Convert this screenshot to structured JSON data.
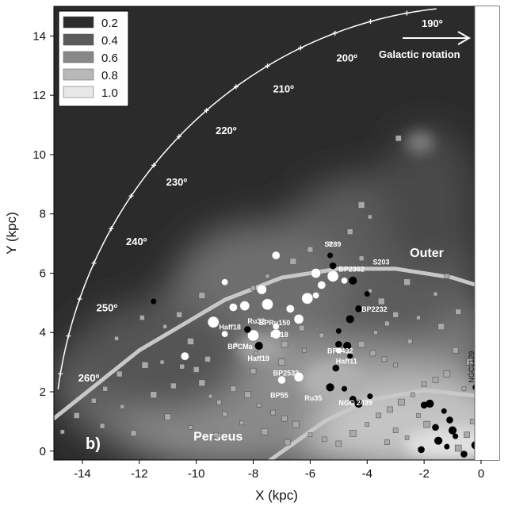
{
  "chart_data": {
    "type": "scatter",
    "xlabel": "X (kpc)",
    "ylabel": "Y (kpc)",
    "xlim": [
      -15,
      0
    ],
    "ylim": [
      -0.3,
      15
    ],
    "x_ticks": [
      "-14",
      "-12",
      "-10",
      "-8",
      "-6",
      "-4",
      "-2",
      "0"
    ],
    "y_ticks": [
      "0",
      "2",
      "4",
      "6",
      "8",
      "10",
      "12",
      "14"
    ],
    "legend": {
      "position": "top-left",
      "levels": [
        {
          "label": "0.2",
          "color": "#2c2c2c"
        },
        {
          "label": "0.4",
          "color": "#5b5b5b"
        },
        {
          "label": "0.6",
          "color": "#888888"
        },
        {
          "label": "0.8",
          "color": "#b8b8b8"
        },
        {
          "label": "1.0",
          "color": "#e8e8e8"
        }
      ]
    },
    "panel_label": "b)",
    "arms": [
      {
        "name": "Outer",
        "points": [
          [
            -15,
            1.1
          ],
          [
            -12,
            3.4
          ],
          [
            -9,
            5.1
          ],
          [
            -7,
            5.85
          ],
          [
            -5,
            6.15
          ],
          [
            -3,
            6.15
          ],
          [
            -1,
            5.85
          ],
          [
            0,
            5.55
          ]
        ]
      },
      {
        "name": "Perseus",
        "points": [
          [
            -7.4,
            -0.3
          ],
          [
            -5.5,
            1.0
          ],
          [
            -4,
            1.7
          ],
          [
            -2,
            2.05
          ],
          [
            0,
            1.85
          ]
        ]
      }
    ],
    "galactic_longitude_arc": {
      "radius_kpc": 15,
      "labels": [
        {
          "text": "200º",
          "l": 200
        },
        {
          "text": "210º",
          "l": 210
        },
        {
          "text": "220º",
          "l": 220
        },
        {
          "text": "230º",
          "l": 230
        },
        {
          "text": "240º",
          "l": 240
        },
        {
          "text": "250º",
          "l": 250
        },
        {
          "text": "260º",
          "l": 260
        }
      ]
    },
    "rotation": {
      "label": "190º",
      "text": "Galactic rotation"
    },
    "cluster_labels": [
      {
        "text": "S289",
        "x": -5.5,
        "y": 6.9
      },
      {
        "text": "S203",
        "x": -3.8,
        "y": 6.3
      },
      {
        "text": "BP2302",
        "x": -5.0,
        "y": 6.05
      },
      {
        "text": "BP2232",
        "x": -4.2,
        "y": 4.7
      },
      {
        "text": "Haff18",
        "x": -9.2,
        "y": 4.1
      },
      {
        "text": "Ru32",
        "x": -8.2,
        "y": 4.3
      },
      {
        "text": "BPRu150",
        "x": -7.8,
        "y": 4.25
      },
      {
        "text": "BP18",
        "x": -7.4,
        "y": 3.85
      },
      {
        "text": "BPCMa",
        "x": -8.9,
        "y": 3.45
      },
      {
        "text": "Haff19",
        "x": -8.2,
        "y": 3.05
      },
      {
        "text": "BP2432",
        "x": -5.4,
        "y": 3.3
      },
      {
        "text": "Haff11",
        "x": -5.1,
        "y": 2.95
      },
      {
        "text": "BP2533",
        "x": -7.3,
        "y": 2.55
      },
      {
        "text": "BP55",
        "x": -7.4,
        "y": 1.8
      },
      {
        "text": "Ru35",
        "x": -6.2,
        "y": 1.7
      },
      {
        "text": "NGC 2439",
        "x": -5.0,
        "y": 1.55
      },
      {
        "text": "NGC2129",
        "x": -0.25,
        "y": 2.3
      }
    ],
    "series": [
      {
        "name": "",
        "marker": "white-circle",
        "points": [
          [
            -9.0,
            5.7
          ],
          [
            -8.7,
            4.85
          ],
          [
            -8.3,
            4.9
          ],
          [
            -9.4,
            4.35
          ],
          [
            -9.0,
            3.95
          ],
          [
            -10.4,
            3.2
          ],
          [
            -7.7,
            5.45
          ],
          [
            -7.5,
            4.95
          ],
          [
            -7.2,
            4.2
          ],
          [
            -6.7,
            4.8
          ],
          [
            -6.4,
            4.45
          ],
          [
            -6.1,
            5.15
          ],
          [
            -5.8,
            5.25
          ],
          [
            -5.6,
            5.6
          ],
          [
            -5.8,
            6.0
          ],
          [
            -5.2,
            5.9
          ],
          [
            -4.8,
            5.75
          ],
          [
            -7.2,
            6.6
          ],
          [
            -7.2,
            3.95
          ],
          [
            -8.0,
            3.9
          ],
          [
            -5.0,
            3.4
          ],
          [
            -7.0,
            2.4
          ],
          [
            -6.4,
            2.5
          ]
        ]
      },
      {
        "name": "",
        "marker": "black-circle",
        "points": [
          [
            -11.5,
            5.05
          ],
          [
            -8.2,
            4.1
          ],
          [
            -7.8,
            3.55
          ],
          [
            -5.3,
            6.6
          ],
          [
            -5.2,
            6.25
          ],
          [
            -4.5,
            5.75
          ],
          [
            -4.0,
            5.3
          ],
          [
            -4.3,
            4.8
          ],
          [
            -4.6,
            4.45
          ],
          [
            -5.0,
            4.05
          ],
          [
            -5.0,
            3.6
          ],
          [
            -4.7,
            3.55
          ],
          [
            -4.6,
            3.2
          ],
          [
            -5.1,
            2.8
          ],
          [
            -5.3,
            2.15
          ],
          [
            -4.8,
            2.1
          ],
          [
            -4.5,
            1.75
          ],
          [
            -4.3,
            1.6
          ],
          [
            -3.9,
            1.85
          ],
          [
            -2.0,
            1.55
          ],
          [
            -1.8,
            1.6
          ],
          [
            -1.3,
            1.35
          ],
          [
            -1.1,
            1.05
          ],
          [
            -1.0,
            0.7
          ],
          [
            -0.9,
            0.5
          ],
          [
            -1.6,
            0.8
          ],
          [
            -1.5,
            0.35
          ],
          [
            -1.2,
            0.15
          ],
          [
            -0.6,
            -0.1
          ],
          [
            -0.2,
            0.2
          ],
          [
            -0.2,
            2.15
          ],
          [
            -2.1,
            0.05
          ]
        ]
      },
      {
        "name": "",
        "marker": "gray-square",
        "points": [
          [
            -14.7,
            0.65
          ],
          [
            -13.6,
            1.7
          ],
          [
            -12.7,
            2.6
          ],
          [
            -11.8,
            2.9
          ],
          [
            -11.2,
            3.0
          ],
          [
            -10.5,
            2.85
          ],
          [
            -10.0,
            2.75
          ],
          [
            -9.8,
            2.3
          ],
          [
            -9.5,
            1.85
          ],
          [
            -9.2,
            1.65
          ],
          [
            -10.8,
            2.2
          ],
          [
            -11.5,
            1.9
          ],
          [
            -12.6,
            1.5
          ],
          [
            -13.3,
            0.85
          ],
          [
            -12.2,
            0.6
          ],
          [
            -11.0,
            1.15
          ],
          [
            -10.2,
            0.8
          ],
          [
            -9.3,
            0.55
          ],
          [
            -8.7,
            2.1
          ],
          [
            -8.2,
            1.9
          ],
          [
            -7.8,
            1.55
          ],
          [
            -7.3,
            1.3
          ],
          [
            -6.9,
            1.1
          ],
          [
            -6.5,
            0.9
          ],
          [
            -6.0,
            0.55
          ],
          [
            -5.5,
            0.4
          ],
          [
            -5.0,
            0.25
          ],
          [
            -4.5,
            0.6
          ],
          [
            -4.0,
            0.9
          ],
          [
            -3.6,
            1.2
          ],
          [
            -3.2,
            1.4
          ],
          [
            -2.8,
            1.65
          ],
          [
            -2.4,
            1.9
          ],
          [
            -2.0,
            2.25
          ],
          [
            -1.6,
            2.4
          ],
          [
            -1.2,
            2.6
          ],
          [
            -3.0,
            2.9
          ],
          [
            -3.4,
            3.1
          ],
          [
            -3.8,
            3.3
          ],
          [
            -4.2,
            3.6
          ],
          [
            -3.7,
            4.0
          ],
          [
            -3.3,
            4.3
          ],
          [
            -3.0,
            4.6
          ],
          [
            -3.5,
            5.05
          ],
          [
            -3.9,
            5.4
          ],
          [
            -4.2,
            6.5
          ],
          [
            -4.6,
            7.4
          ],
          [
            -4.2,
            8.3
          ],
          [
            -3.9,
            7.9
          ],
          [
            -5.3,
            7.0
          ],
          [
            -6.0,
            6.8
          ],
          [
            -6.6,
            6.4
          ],
          [
            -7.5,
            5.9
          ],
          [
            -8.0,
            5.5
          ],
          [
            -2.9,
            10.55
          ],
          [
            -2.6,
            5.7
          ],
          [
            -1.6,
            5.3
          ],
          [
            -1.2,
            5.9
          ],
          [
            -0.8,
            4.7
          ],
          [
            -1.4,
            4.2
          ],
          [
            -2.2,
            4.5
          ],
          [
            -2.5,
            3.7
          ],
          [
            -0.9,
            3.4
          ],
          [
            -0.4,
            3.0
          ],
          [
            -0.6,
            2.1
          ],
          [
            -0.3,
            1.0
          ],
          [
            -0.5,
            0.55
          ],
          [
            -0.8,
            0.1
          ],
          [
            -2.6,
            0.45
          ],
          [
            -3.3,
            0.3
          ],
          [
            -6.8,
            0.3
          ],
          [
            -7.6,
            0.65
          ],
          [
            -8.4,
            0.95
          ],
          [
            -9.0,
            1.25
          ],
          [
            -8.0,
            2.7
          ],
          [
            -7.0,
            3.0
          ],
          [
            -6.2,
            3.4
          ],
          [
            -5.6,
            3.9
          ],
          [
            -6.3,
            4.15
          ],
          [
            -6.9,
            3.6
          ],
          [
            -7.9,
            3.3
          ],
          [
            -8.6,
            3.6
          ],
          [
            -9.6,
            3.1
          ],
          [
            -10.2,
            3.7
          ],
          [
            -11.1,
            4.2
          ],
          [
            -11.9,
            4.5
          ],
          [
            -10.6,
            4.6
          ],
          [
            -9.8,
            5.25
          ],
          [
            -12.8,
            3.8
          ],
          [
            -13.2,
            2.1
          ],
          [
            -14.2,
            1.2
          ],
          [
            -1.9,
            0.9
          ],
          [
            -2.2,
            1.2
          ],
          [
            -3.0,
            0.7
          ]
        ]
      }
    ]
  }
}
